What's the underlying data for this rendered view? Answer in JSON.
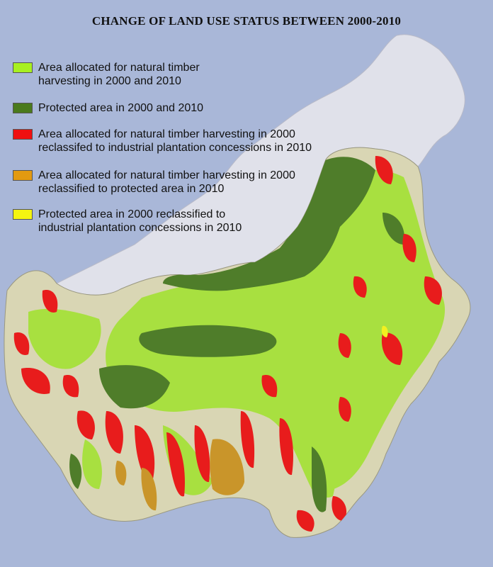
{
  "title": "CHANGE OF LAND USE STATUS BETWEEN 2000-2010",
  "legend": [
    {
      "color": "#a8f020",
      "line1": "Area allocated for natural timber",
      "line2": "harvesting in 2000 and 2010"
    },
    {
      "color": "#4a7a1c",
      "line1": "Protected area in 2000 and 2010",
      "line2": ""
    },
    {
      "color": "#f01010",
      "line1": "Area allocated for natural timber harvesting in 2000",
      "line2": " reclassifed to industrial plantation concessions in 2010"
    },
    {
      "color": "#e39a10",
      "line1": "Area allocated for natural timber harvesting in 2000",
      "line2": "reclassified to protected area in 2010"
    },
    {
      "color": "#f5f510",
      "line1": "Protected area in 2000 reclassified to",
      "line2": "industrial plantation concessions in 2010"
    }
  ],
  "colors": {
    "sea": "#a9b7d8",
    "other_land": "#e0e1ea",
    "base_land": "#d9d6b4",
    "timber": "#a8e040",
    "protected": "#4f7d2a",
    "plantation": "#e81c1c",
    "to_protected": "#c9952a",
    "to_plantation": "#f2f020"
  }
}
